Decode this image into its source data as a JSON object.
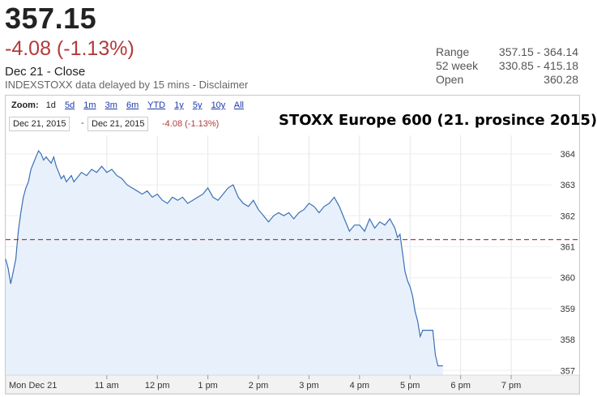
{
  "header": {
    "price": "357.15",
    "change": "-4.08 (-1.13%)",
    "date_close": "Dec 21 - Close",
    "delay_text": "INDEXSTOXX data delayed by 15 mins - ",
    "disclaimer_link": "Disclaimer"
  },
  "stats": [
    {
      "label": "Range",
      "value": "357.15 - 364.14"
    },
    {
      "label": "52 week",
      "value": "330.85 - 415.18"
    },
    {
      "label": "Open",
      "value": "360.28"
    }
  ],
  "toolbar": {
    "zoom_label": "Zoom:",
    "zoom_options": [
      "1d",
      "5d",
      "1m",
      "3m",
      "6m",
      "YTD",
      "1y",
      "5y",
      "10y",
      "All"
    ],
    "active_zoom": "1d",
    "from_date": "Dec 21, 2015",
    "to_date": "Dec 21, 2015",
    "range_dash": "-",
    "range_change": "-4.08 (-1.13%)"
  },
  "colors": {
    "line": "#3b6fb6",
    "fill": "#e8f1fb",
    "reference_line": "#b22222",
    "negative": "#b33a3a"
  },
  "chart_data": {
    "type": "area",
    "title": "STOXX Europe 600 (21. prosince 2015)",
    "xlabel": "",
    "ylabel": "",
    "x_tick_labels": [
      "Mon Dec 21",
      "11 am",
      "12 pm",
      "1 pm",
      "2 pm",
      "3 pm",
      "4 pm",
      "5 pm",
      "6 pm",
      "7 pm"
    ],
    "x_tick_hours": [
      9,
      11,
      12,
      13,
      14,
      15,
      16,
      17,
      18,
      19
    ],
    "x_range_hours": [
      9,
      19.8
    ],
    "y_ticks": [
      357,
      358,
      359,
      360,
      361,
      362,
      363,
      364
    ],
    "ylim": [
      356.85,
      364.6
    ],
    "previous_close": 361.23,
    "grid": true,
    "series": [
      {
        "x": [
          9.0,
          9.05,
          9.1,
          9.15,
          9.2,
          9.25,
          9.3,
          9.35,
          9.4,
          9.45,
          9.5,
          9.55,
          9.6,
          9.65,
          9.7,
          9.75,
          9.8,
          9.85,
          9.9,
          9.95,
          10.0,
          10.05,
          10.1,
          10.15,
          10.2,
          10.25,
          10.3,
          10.35,
          10.4,
          10.5,
          10.6,
          10.7,
          10.8,
          10.9,
          11.0,
          11.1,
          11.2,
          11.3,
          11.4,
          11.5,
          11.6,
          11.7,
          11.8,
          11.9,
          12.0,
          12.1,
          12.2,
          12.3,
          12.4,
          12.5,
          12.6,
          12.7,
          12.8,
          12.9,
          13.0,
          13.1,
          13.2,
          13.3,
          13.4,
          13.5,
          13.6,
          13.7,
          13.8,
          13.9,
          14.0,
          14.1,
          14.2,
          14.3,
          14.4,
          14.5,
          14.6,
          14.7,
          14.8,
          14.9,
          15.0,
          15.1,
          15.2,
          15.3,
          15.4,
          15.5,
          15.6,
          15.7,
          15.8,
          15.9,
          16.0,
          16.1,
          16.2,
          16.3,
          16.4,
          16.5,
          16.6,
          16.7,
          16.75,
          16.8,
          16.85,
          16.9,
          16.95,
          17.0,
          17.05,
          17.1,
          17.15,
          17.2,
          17.25,
          17.3,
          17.35,
          17.4,
          17.45,
          17.5,
          17.55,
          17.6,
          17.65
        ],
        "y": [
          360.6,
          360.3,
          359.8,
          360.2,
          360.6,
          361.5,
          362.1,
          362.6,
          362.9,
          363.1,
          363.5,
          363.7,
          363.9,
          364.1,
          364.0,
          363.8,
          363.9,
          363.8,
          363.7,
          363.9,
          363.6,
          363.4,
          363.2,
          363.3,
          363.1,
          363.2,
          363.3,
          363.1,
          363.2,
          363.4,
          363.3,
          363.5,
          363.4,
          363.6,
          363.4,
          363.5,
          363.3,
          363.2,
          363.0,
          362.9,
          362.8,
          362.7,
          362.8,
          362.6,
          362.7,
          362.5,
          362.4,
          362.6,
          362.5,
          362.6,
          362.4,
          362.5,
          362.6,
          362.7,
          362.9,
          362.6,
          362.5,
          362.7,
          362.9,
          363.0,
          362.6,
          362.4,
          362.3,
          362.5,
          362.2,
          362.0,
          361.8,
          362.0,
          362.1,
          362.0,
          362.1,
          361.9,
          362.1,
          362.2,
          362.4,
          362.3,
          362.1,
          362.3,
          362.4,
          362.6,
          362.3,
          361.9,
          361.5,
          361.7,
          361.7,
          361.5,
          361.9,
          361.6,
          361.8,
          361.7,
          361.9,
          361.6,
          361.3,
          361.4,
          360.8,
          360.2,
          359.9,
          359.7,
          359.4,
          358.9,
          358.6,
          358.1,
          358.3,
          358.3,
          358.3,
          358.3,
          358.3,
          357.5,
          357.15,
          357.15,
          357.15
        ]
      }
    ]
  }
}
